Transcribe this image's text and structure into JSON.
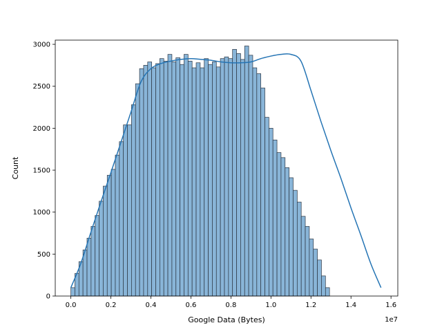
{
  "chart_data": {
    "type": "bar",
    "subtype": "histogram-with-kde",
    "title": "",
    "xlabel": "Google Data (Bytes)",
    "ylabel": "Count",
    "x_offset_label": "1e7",
    "xlim": [
      -0.078,
      1.634
    ],
    "ylim": [
      0,
      3050
    ],
    "x_ticks": [
      0.0,
      0.2,
      0.4,
      0.6,
      0.8,
      1.0,
      1.2,
      1.4,
      1.6
    ],
    "x_tick_labels": [
      "0.0",
      "0.2",
      "0.4",
      "0.6",
      "0.8",
      "1.0",
      "1.2",
      "1.4",
      "1.6"
    ],
    "y_ticks": [
      0,
      500,
      1000,
      1500,
      2000,
      2500,
      3000
    ],
    "y_tick_labels": [
      "0",
      "500",
      "1000",
      "1500",
      "2000",
      "2500",
      "3000"
    ],
    "bin_start": 0.0,
    "bin_width": 0.0202,
    "values": [
      100,
      270,
      410,
      550,
      690,
      830,
      960,
      1130,
      1310,
      1440,
      1510,
      1680,
      1840,
      2040,
      2040,
      2280,
      2530,
      2710,
      2750,
      2790,
      2720,
      2770,
      2830,
      2800,
      2880,
      2790,
      2840,
      2760,
      2880,
      2800,
      2720,
      2780,
      2720,
      2830,
      2760,
      2790,
      2730,
      2830,
      2850,
      2830,
      2940,
      2890,
      2820,
      2980,
      2870,
      2720,
      2650,
      2480,
      2130,
      2000,
      1860,
      1710,
      1650,
      1530,
      1410,
      1260,
      1120,
      950,
      830,
      680,
      560,
      430,
      240,
      100
    ],
    "kde": {
      "x": [
        0.0,
        0.05,
        0.1,
        0.15,
        0.2,
        0.25,
        0.3,
        0.35,
        0.4,
        0.45,
        0.5,
        0.55,
        0.6,
        0.65,
        0.7,
        0.75,
        0.8,
        0.85,
        0.9,
        0.95,
        1.0,
        1.05,
        1.1,
        1.15,
        1.2,
        1.25,
        1.3,
        1.35,
        1.4,
        1.45,
        1.5,
        1.55
      ],
      "y": [
        100,
        390,
        760,
        1120,
        1470,
        1830,
        2190,
        2550,
        2710,
        2770,
        2800,
        2820,
        2830,
        2820,
        2810,
        2790,
        2780,
        2780,
        2790,
        2830,
        2860,
        2880,
        2880,
        2800,
        2450,
        2080,
        1730,
        1400,
        1050,
        720,
        380,
        100
      ]
    },
    "bar_color": "#89b5d8",
    "bar_edge_color": "#2b3440",
    "kde_color": "#2474b4"
  }
}
